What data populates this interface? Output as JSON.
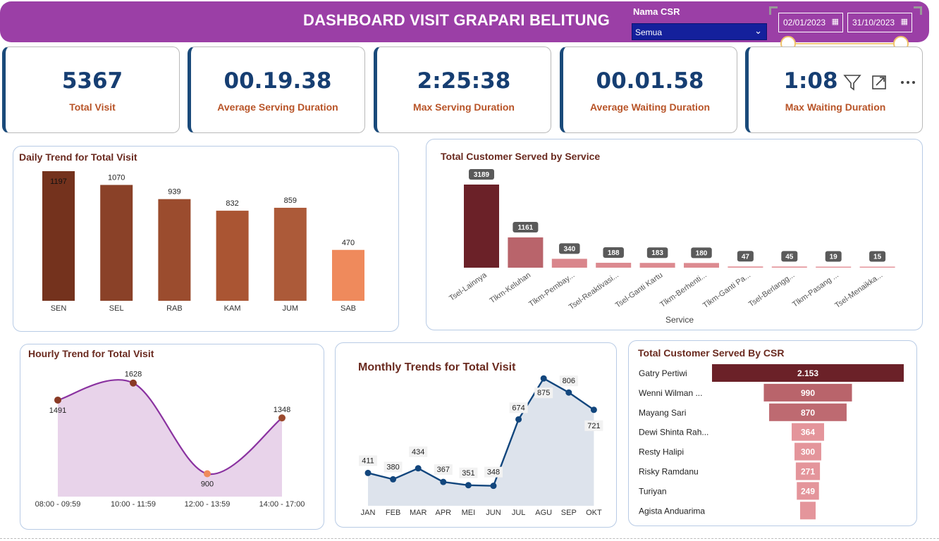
{
  "header": {
    "title": "DASHBOARD VISIT GRAPARI BELITUNG",
    "csr_label": "Nama CSR",
    "csr_selected": "Semua",
    "date_from": "02/01/2023",
    "date_to": "31/10/2023"
  },
  "kpis": [
    {
      "value": "5367",
      "label": "Total Visit"
    },
    {
      "value": "00.19.38",
      "label": "Average Serving Duration"
    },
    {
      "value": "2:25:38",
      "label": "Max Serving Duration"
    },
    {
      "value": "00.01.58",
      "label": "Average Waiting Duration"
    },
    {
      "value": "1:08",
      "label": "Max Waiting Duration"
    }
  ],
  "colors": {
    "header": "#9b3fa6",
    "kpi_value": "#163e72",
    "kpi_label": "#b85428"
  },
  "chart_data": [
    {
      "type": "bar",
      "title": "Daily Trend for Total Visit",
      "categories": [
        "SEN",
        "SEL",
        "RAB",
        "KAM",
        "JUM",
        "SAB"
      ],
      "values": [
        1197,
        1070,
        939,
        832,
        859,
        470
      ],
      "colors": [
        "#74321d",
        "#8a4128",
        "#9b4c2e",
        "#aa5533",
        "#ac5a39",
        "#ef8a5c"
      ],
      "ylim": [
        0,
        1197
      ]
    },
    {
      "type": "bar",
      "title": "Total Customer Served by Service",
      "xlabel": "Service",
      "categories": [
        "Tsel-Lainnya",
        "Tlkm-Keluhan",
        "Tlkm-Pembay...",
        "Tsel-Reaktivasi...",
        "Tsel-Ganti Kartu",
        "Tlkm-Berhenti...",
        "Tlkm-Ganti Pa...",
        "Tsel-Berlangg...",
        "Tlkm-Pasang ...",
        "Tsel-Menaikka..."
      ],
      "values": [
        3189,
        1161,
        340,
        188,
        183,
        180,
        47,
        45,
        19,
        15
      ],
      "colors": [
        "#6b2128",
        "#b9646b",
        "#d9858b",
        "#dc8a90",
        "#dc8a90",
        "#dc8a90",
        "#e4959b",
        "#e4959b",
        "#e4959b",
        "#e4959b"
      ],
      "ylim": [
        0,
        3189
      ]
    },
    {
      "type": "area",
      "title": "Hourly Trend for Total Visit",
      "categories": [
        "08:00 - 09:59",
        "10:00 - 11:59",
        "12:00 - 13:59",
        "14:00 - 17:00"
      ],
      "values": [
        1491,
        1628,
        900,
        1348
      ],
      "ylim": [
        750,
        1700
      ]
    },
    {
      "type": "area",
      "title": "Monthly Trends for Total Visit",
      "categories": [
        "JAN",
        "FEB",
        "MAR",
        "APR",
        "MEI",
        "JUN",
        "JUL",
        "AGU",
        "SEP",
        "OKT"
      ],
      "values": [
        411,
        380,
        434,
        367,
        351,
        348,
        674,
        875,
        806,
        721
      ],
      "ylim": [
        250,
        900
      ]
    },
    {
      "type": "bar",
      "title": "Total Customer Served By CSR",
      "categories": [
        "Gatry Pertiwi",
        "Wenni Wilman ...",
        "Mayang Sari",
        "Dewi Shinta Rah...",
        "Resty Halipi",
        "Risky Ramdanu",
        "Turiyan",
        "Agista Anduarima"
      ],
      "values": [
        2153,
        990,
        870,
        364,
        300,
        271,
        249,
        0
      ],
      "value_labels": [
        "2.153",
        "990",
        "870",
        "364",
        "300",
        "271",
        "249",
        ""
      ],
      "colors": [
        "#6b2128",
        "#b9646b",
        "#be6a71",
        "#e4959b",
        "#e4959b",
        "#e4959b",
        "#e4959b",
        "#e4959b"
      ],
      "xlim": [
        0,
        2153
      ]
    }
  ]
}
